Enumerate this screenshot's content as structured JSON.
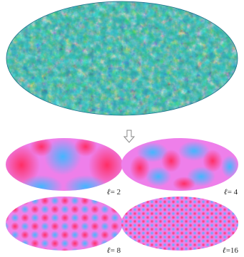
{
  "arrow_icon": "down-arrow-icon",
  "colors": {
    "cmb_base": "#2aa3a8",
    "harmonic_red": "#ff3a6e",
    "harmonic_magenta": "#f07ee8",
    "harmonic_blue": "#4fb4ff"
  },
  "panels": [
    {
      "id": "l2",
      "label_prefix": "ℓ",
      "label_value": "= 2"
    },
    {
      "id": "l4",
      "label_prefix": "ℓ",
      "label_value": "= 4"
    },
    {
      "id": "l8",
      "label_prefix": "ℓ",
      "label_value": "= 8"
    },
    {
      "id": "l16",
      "label_prefix": "ℓ",
      "label_value": "=16"
    }
  ]
}
